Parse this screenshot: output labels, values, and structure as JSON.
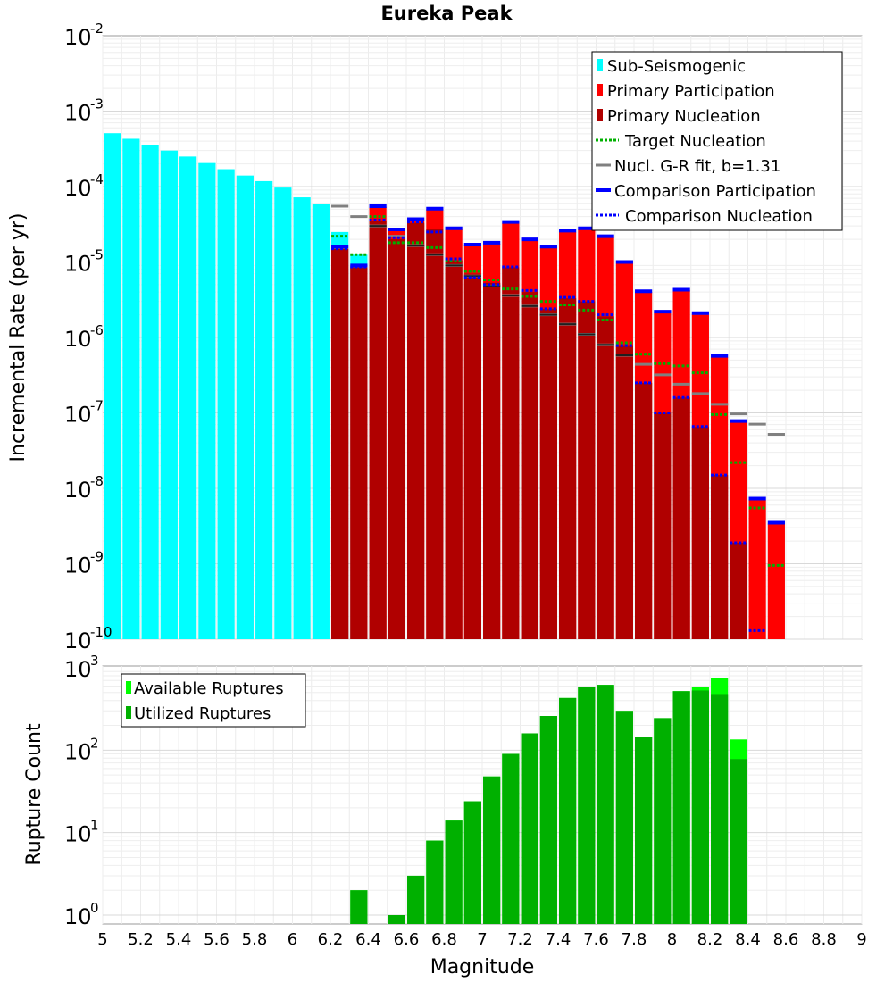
{
  "chart_data": [
    {
      "type": "bar",
      "title": "Eureka Peak",
      "xlabel": "",
      "ylabel": "Incremental Rate (per yr)",
      "yscale": "log",
      "ylim_exponents": [
        -10,
        -2
      ],
      "xlim": [
        5,
        9
      ],
      "grid": true,
      "legend_position": "top-right",
      "legend": [
        {
          "label": "Sub-Seismogenic",
          "color": "#00ffff",
          "style": "bar"
        },
        {
          "label": "Primary Participation",
          "color": "#ff0000",
          "style": "bar"
        },
        {
          "label": "Primary Nucleation",
          "color": "#b00000",
          "style": "bar"
        },
        {
          "label": "Target Nucleation",
          "color": "#00b000",
          "style": "dotted"
        },
        {
          "label": "Nucl. G-R fit, b=1.31",
          "color": "#808080",
          "style": "solid"
        },
        {
          "label": "Comparison Participation",
          "color": "#0000ff",
          "style": "thick"
        },
        {
          "label": "Comparison Nucleation",
          "color": "#0000ff",
          "style": "dotted"
        }
      ],
      "series": {
        "sub_seismogenic": {
          "x": [
            5.05,
            5.15,
            5.25,
            5.35,
            5.45,
            5.55,
            5.65,
            5.75,
            5.85,
            5.95,
            6.05,
            6.15,
            6.25,
            6.35
          ],
          "y": [
            0.00051,
            0.00043,
            0.00036,
            0.0003,
            0.00025,
            0.000205,
            0.00017,
            0.00014,
            0.000118,
            9.7e-05,
            7.2e-05,
            5.8e-05,
            2.5e-05,
            1.25e-05
          ]
        },
        "primary_participation": {
          "x": [
            6.25,
            6.35,
            6.45,
            6.55,
            6.65,
            6.75,
            6.85,
            6.95,
            7.05,
            7.15,
            7.25,
            7.35,
            7.45,
            7.55,
            7.65,
            7.75,
            7.85,
            7.95,
            8.05,
            8.15,
            8.25,
            8.35,
            8.45,
            8.55
          ],
          "y": [
            1.5e-05,
            8.5e-06,
            5.4e-05,
            2.6e-05,
            3.6e-05,
            5e-05,
            2.7e-05,
            1.65e-05,
            1.75e-05,
            3.3e-05,
            1.9e-05,
            1.55e-05,
            2.5e-05,
            2.7e-05,
            2.1e-05,
            9.5e-06,
            4e-06,
            2.1e-06,
            4.2e-06,
            2e-06,
            5.5e-07,
            7.5e-08,
            7e-09,
            3.4e-09
          ]
        },
        "primary_nucleation": {
          "x": [
            6.25,
            6.35,
            6.45,
            6.55,
            6.65,
            6.75,
            6.85,
            6.95,
            7.05,
            7.15,
            7.25,
            7.35,
            7.45,
            7.55,
            7.65,
            7.75,
            7.85,
            7.95,
            8.05,
            8.15,
            8.25,
            8.35
          ],
          "y": [
            1.5e-05,
            8.5e-06,
            3.5e-05,
            2e-05,
            3.3e-05,
            2.7e-05,
            1.05e-05,
            7e-06,
            5.3e-06,
            8.5e-06,
            4e-06,
            2.4e-06,
            3.3e-06,
            3e-06,
            1.9e-06,
            7.7e-07,
            2.5e-07,
            1e-07,
            1.6e-07,
            6.5e-08,
            1.5e-08,
            1.9e-09
          ]
        },
        "target_nucleation": {
          "x": [
            6.25,
            6.35,
            6.45,
            6.55,
            6.65,
            6.75,
            6.85,
            6.95,
            7.05,
            7.15,
            7.25,
            7.35,
            7.45,
            7.55,
            7.65,
            7.75,
            7.85,
            7.95,
            8.05,
            8.15,
            8.25,
            8.35,
            8.45,
            8.55
          ],
          "y": [
            2.2e-05,
            1.25e-05,
            4e-05,
            1.8e-05,
            1.8e-05,
            1.55e-05,
            1.05e-05,
            7.5e-06,
            5.8e-06,
            4.4e-06,
            3.5e-06,
            3e-06,
            2.7e-06,
            2.3e-06,
            1.7e-06,
            8.5e-07,
            6e-07,
            4.5e-07,
            4.2e-07,
            3.4e-07,
            9.5e-08,
            2.2e-08,
            5.5e-09,
            9.5e-10
          ]
        },
        "gr_fit": {
          "x": [
            6.25,
            6.35,
            6.45,
            6.55,
            6.65,
            6.75,
            6.85,
            6.95,
            7.05,
            7.15,
            7.25,
            7.35,
            7.45,
            7.55,
            7.65,
            7.75,
            7.85,
            7.95,
            8.05,
            8.15,
            8.25,
            8.35,
            8.45,
            8.55
          ],
          "y": [
            5.5e-05,
            4e-05,
            3e-05,
            2.2e-05,
            1.65e-05,
            1.25e-05,
            9e-06,
            6.5e-06,
            4.8e-06,
            3.6e-06,
            2.6e-06,
            2e-06,
            1.5e-06,
            1.1e-06,
            8e-07,
            5.8e-07,
            4.4e-07,
            3.2e-07,
            2.4e-07,
            1.8e-07,
            1.3e-07,
            9.7e-08,
            7.1e-08,
            5.2e-08
          ]
        },
        "comparison_participation": {
          "x": [
            6.25,
            6.35,
            6.45,
            6.55,
            6.65,
            6.75,
            6.85,
            6.95,
            7.05,
            7.15,
            7.25,
            7.35,
            7.45,
            7.55,
            7.65,
            7.75,
            7.85,
            7.95,
            8.05,
            8.15,
            8.25,
            8.35,
            8.45,
            8.55
          ],
          "y": [
            1.6e-05,
            9e-06,
            5.5e-05,
            2.7e-05,
            3.7e-05,
            5.1e-05,
            2.8e-05,
            1.7e-05,
            1.8e-05,
            3.4e-05,
            2e-05,
            1.6e-05,
            2.6e-05,
            2.8e-05,
            2.2e-05,
            1e-05,
            4.1e-06,
            2.2e-06,
            4.3e-06,
            2.1e-06,
            5.7e-07,
            7.8e-08,
            7.3e-09,
            3.5e-09
          ]
        },
        "comparison_nucleation": {
          "x": [
            6.25,
            6.35,
            6.45,
            6.55,
            6.65,
            6.75,
            6.85,
            6.95,
            7.05,
            7.15,
            7.25,
            7.35,
            7.45,
            7.55,
            7.65,
            7.75,
            7.85,
            7.95,
            8.05,
            8.15,
            8.25,
            8.35,
            8.45
          ],
          "y": [
            1.5e-05,
            8.6e-06,
            3.6e-05,
            2.1e-05,
            3.4e-05,
            2.5e-05,
            1.1e-05,
            6.2e-06,
            5e-06,
            8.6e-06,
            4.2e-06,
            2.4e-06,
            3.4e-06,
            3e-06,
            2e-06,
            7.8e-07,
            2.5e-07,
            1e-07,
            1.6e-07,
            6.6e-08,
            1.5e-08,
            1.9e-09,
            1.3e-10
          ]
        }
      }
    },
    {
      "type": "bar",
      "xlabel": "Magnitude",
      "ylabel": "Rupture Count",
      "yscale": "log",
      "ylim_exponents": [
        0,
        3
      ],
      "xlim": [
        5,
        9
      ],
      "xticks": [
        "5",
        "5.2",
        "5.4",
        "5.6",
        "5.8",
        "6",
        "6.2",
        "6.4",
        "6.6",
        "6.8",
        "7",
        "7.2",
        "7.4",
        "7.6",
        "7.8",
        "8",
        "8.2",
        "8.4",
        "8.6",
        "8.8",
        "9"
      ],
      "grid": true,
      "legend_position": "top-left",
      "legend": [
        {
          "label": "Available Ruptures",
          "color": "#00ff00"
        },
        {
          "label": "Utilized Ruptures",
          "color": "#00b000"
        }
      ],
      "series": {
        "available": {
          "x": [
            6.35,
            6.55,
            6.65,
            6.75,
            6.85,
            6.95,
            7.05,
            7.15,
            7.25,
            7.35,
            7.45,
            7.55,
            7.65,
            7.75,
            7.85,
            7.95,
            8.05,
            8.15,
            8.25,
            8.35
          ],
          "y": [
            2,
            1,
            3,
            8,
            14,
            24,
            48,
            90,
            160,
            260,
            430,
            590,
            620,
            300,
            145,
            245,
            520,
            590,
            750,
            135
          ]
        },
        "utilized": {
          "x": [
            6.35,
            6.55,
            6.65,
            6.75,
            6.85,
            6.95,
            7.05,
            7.15,
            7.25,
            7.35,
            7.45,
            7.55,
            7.65,
            7.75,
            7.85,
            7.95,
            8.05,
            8.15,
            8.25,
            8.35
          ],
          "y": [
            2,
            1,
            3,
            8,
            14,
            24,
            48,
            90,
            160,
            260,
            430,
            590,
            620,
            300,
            145,
            245,
            520,
            530,
            480,
            78
          ]
        }
      }
    }
  ]
}
